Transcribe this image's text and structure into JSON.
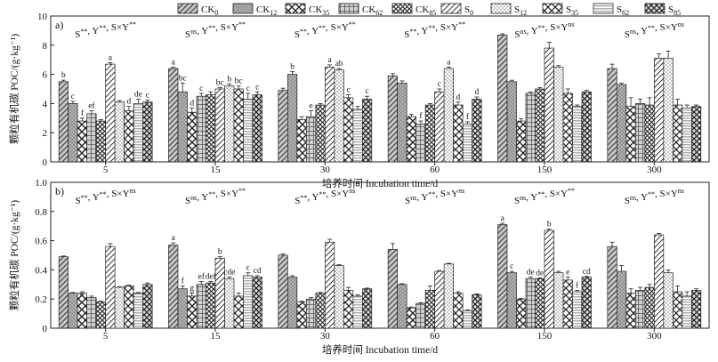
{
  "chart_data": [
    {
      "type": "bar",
      "panel_label": "a)",
      "ylabel_cn": "颗粒有机碳",
      "ylabel_en": "POC/(g·kg⁻¹)",
      "xlabel": "培养时间 Incubation time/d",
      "ylim": [
        0,
        10
      ],
      "yticks": [
        "0",
        "2",
        "4",
        "6",
        "8",
        "10"
      ],
      "categories": [
        "5",
        "15",
        "30",
        "60",
        "150",
        "300"
      ],
      "significance": [
        {
          "s": "S**",
          "y": "Y**",
          "sy": "S×Y**"
        },
        {
          "s": "Sns",
          "y": "Y**",
          "sy": "S×Y**"
        },
        {
          "s": "S**",
          "y": "Y**",
          "sy": "S×Y**"
        },
        {
          "s": "S**",
          "y": "Y**",
          "sy": "S×Y**"
        },
        {
          "s": "Sns",
          "y": "Y**",
          "sy": "S×Yns"
        },
        {
          "s": "Sns",
          "y": "Y**",
          "sy": "S×Yns"
        }
      ],
      "series": [
        {
          "name": "CK0",
          "values": [
            5.5,
            6.4,
            4.9,
            5.9,
            8.7,
            6.4
          ],
          "errors": [
            0.1,
            0.1,
            0.15,
            0.15,
            0.08,
            0.3
          ],
          "letters": [
            "b",
            "a",
            "",
            "",
            "",
            ""
          ]
        },
        {
          "name": "CK12",
          "values": [
            4.0,
            4.8,
            6.0,
            5.4,
            5.5,
            5.3
          ],
          "errors": [
            0.15,
            0.6,
            0.2,
            0.15,
            0.1,
            0.1
          ],
          "letters": [
            "c",
            "bc",
            "b",
            "",
            "",
            ""
          ]
        },
        {
          "name": "CK35",
          "values": [
            2.8,
            3.4,
            2.9,
            3.1,
            2.8,
            3.8
          ],
          "errors": [
            0.2,
            0.3,
            0.2,
            0.15,
            0.15,
            0.6
          ],
          "letters": [
            "f",
            "d",
            "",
            "",
            "",
            ""
          ]
        },
        {
          "name": "CK62",
          "values": [
            3.3,
            4.5,
            3.1,
            2.6,
            4.7,
            4.0
          ],
          "errors": [
            0.2,
            0.2,
            0.4,
            0.2,
            0.1,
            0.3
          ],
          "letters": [
            "ef",
            "c",
            "e",
            "f",
            "",
            ""
          ]
        },
        {
          "name": "CK85",
          "values": [
            2.8,
            4.6,
            3.9,
            3.9,
            5.0,
            3.9
          ],
          "errors": [
            0.1,
            0.2,
            0.1,
            0.1,
            0.1,
            0.5
          ],
          "letters": [
            "",
            "",
            "",
            "",
            "",
            ""
          ]
        },
        {
          "name": "S0",
          "values": [
            6.7,
            5.0,
            6.5,
            4.8,
            7.8,
            7.1
          ],
          "errors": [
            0.1,
            0.1,
            0.15,
            0.2,
            0.4,
            0.3
          ],
          "letters": [
            "a",
            "bc",
            "a",
            "c",
            "",
            ""
          ]
        },
        {
          "name": "S12",
          "values": [
            4.1,
            5.2,
            6.3,
            6.4,
            6.5,
            7.1
          ],
          "errors": [
            0.1,
            0.15,
            0.1,
            0.1,
            0.1,
            0.5
          ],
          "letters": [
            "",
            "b",
            "ab",
            "a",
            "",
            ""
          ]
        },
        {
          "name": "S35",
          "values": [
            3.5,
            5.0,
            4.4,
            3.9,
            4.7,
            3.9
          ],
          "errors": [
            0.3,
            0.2,
            0.2,
            0.2,
            0.3,
            0.4
          ],
          "letters": [
            "d",
            "bc",
            "c",
            "d",
            "",
            ""
          ]
        },
        {
          "name": "S62",
          "values": [
            4.0,
            4.3,
            3.6,
            2.6,
            3.8,
            3.7
          ],
          "errors": [
            0.3,
            0.4,
            0.2,
            0.15,
            0.1,
            0.2
          ],
          "letters": [
            "de",
            "c",
            "",
            "f",
            "",
            ""
          ]
        },
        {
          "name": "S85",
          "values": [
            4.1,
            4.6,
            4.3,
            4.3,
            4.8,
            3.8
          ],
          "errors": [
            0.15,
            0.2,
            0.2,
            0.15,
            0.1,
            0.1
          ],
          "letters": [
            "c",
            "c",
            "c",
            "d",
            "",
            ""
          ]
        }
      ]
    },
    {
      "type": "bar",
      "panel_label": "b)",
      "ylabel_cn": "颗粒有机碳",
      "ylabel_en": "POC/(g·kg⁻¹)",
      "xlabel": "培养时间 Incubation time/d",
      "ylim": [
        0,
        1.0
      ],
      "yticks": [
        "0",
        "0.2",
        "0.4",
        "0.6",
        "0.8",
        "1.0"
      ],
      "categories": [
        "5",
        "15",
        "30",
        "60",
        "150",
        "300"
      ],
      "significance": [
        {
          "s": "S**",
          "y": "Y**",
          "sy": "S×Yns"
        },
        {
          "s": "Sns",
          "y": "Y**",
          "sy": "S×Y**"
        },
        {
          "s": "S**",
          "y": "Y**",
          "sy": "S×Yns"
        },
        {
          "s": "Sns",
          "y": "Y**",
          "sy": "S×Yns"
        },
        {
          "s": "Sns",
          "y": "Y**",
          "sy": "S×Y**"
        },
        {
          "s": "Sns",
          "y": "Y**",
          "sy": "S×Yns"
        }
      ],
      "series": [
        {
          "name": "CK0",
          "values": [
            0.49,
            0.57,
            0.5,
            0.54,
            0.71,
            0.56
          ],
          "errors": [
            0.005,
            0.015,
            0.01,
            0.04,
            0.01,
            0.03
          ],
          "letters": [
            "",
            "a",
            "",
            "",
            "a",
            ""
          ]
        },
        {
          "name": "CK12",
          "values": [
            0.24,
            0.27,
            0.35,
            0.3,
            0.38,
            0.39
          ],
          "errors": [
            0.005,
            0.02,
            0.01,
            0.005,
            0.01,
            0.04
          ],
          "letters": [
            "",
            "f",
            "",
            "",
            "c",
            ""
          ]
        },
        {
          "name": "CK35",
          "values": [
            0.24,
            0.22,
            0.18,
            0.14,
            0.2,
            0.24
          ],
          "errors": [
            0.01,
            0.02,
            0.005,
            0.005,
            0.005,
            0.03
          ],
          "letters": [
            "",
            "g",
            "",
            "",
            "",
            ""
          ]
        },
        {
          "name": "CK62",
          "values": [
            0.21,
            0.3,
            0.2,
            0.17,
            0.34,
            0.26
          ],
          "errors": [
            0.01,
            0.02,
            0.01,
            0.005,
            0.01,
            0.02
          ],
          "letters": [
            "",
            "ef",
            "",
            "",
            "de",
            ""
          ]
        },
        {
          "name": "CK85",
          "values": [
            0.18,
            0.31,
            0.24,
            0.26,
            0.34,
            0.28
          ],
          "errors": [
            0.005,
            0.01,
            0.005,
            0.03,
            0.005,
            0.02
          ],
          "letters": [
            "",
            "def",
            "",
            "",
            "de",
            ""
          ]
        },
        {
          "name": "S0",
          "values": [
            0.56,
            0.48,
            0.59,
            0.39,
            0.67,
            0.64
          ],
          "errors": [
            0.02,
            0.01,
            0.02,
            0.005,
            0.01,
            0.01
          ],
          "letters": [
            "",
            "b",
            "",
            "",
            "b",
            ""
          ]
        },
        {
          "name": "S12",
          "values": [
            0.28,
            0.34,
            0.43,
            0.44,
            0.38,
            0.38
          ],
          "errors": [
            0.005,
            0.01,
            0.005,
            0.005,
            0.01,
            0.02
          ],
          "letters": [
            "",
            "cde",
            "",
            "",
            "",
            ""
          ]
        },
        {
          "name": "S35",
          "values": [
            0.29,
            0.22,
            0.26,
            0.24,
            0.33,
            0.25
          ],
          "errors": [
            0.005,
            0.02,
            0.02,
            0.01,
            0.02,
            0.04
          ],
          "letters": [
            "",
            "",
            "",
            "",
            "e",
            ""
          ]
        },
        {
          "name": "S62",
          "values": [
            0.24,
            0.36,
            0.22,
            0.12,
            0.25,
            0.22
          ],
          "errors": [
            0.005,
            0.02,
            0.01,
            0.005,
            0.01,
            0.03
          ],
          "letters": [
            "",
            "c",
            "",
            "",
            "f",
            ""
          ]
        },
        {
          "name": "S85",
          "values": [
            0.3,
            0.35,
            0.27,
            0.23,
            0.35,
            0.26
          ],
          "errors": [
            0.01,
            0.01,
            0.005,
            0.005,
            0.005,
            0.01
          ],
          "letters": [
            "",
            "cd",
            "",
            "",
            "cd",
            ""
          ]
        }
      ]
    }
  ],
  "legend": [
    {
      "base": "CK",
      "sub": "0"
    },
    {
      "base": "CK",
      "sub": "12"
    },
    {
      "base": "CK",
      "sub": "35"
    },
    {
      "base": "CK",
      "sub": "62"
    },
    {
      "base": "CK",
      "sub": "85"
    },
    {
      "base": "S",
      "sub": "0"
    },
    {
      "base": "S",
      "sub": "12"
    },
    {
      "base": "S",
      "sub": "35"
    },
    {
      "base": "S",
      "sub": "62"
    },
    {
      "base": "S",
      "sub": "85"
    }
  ]
}
